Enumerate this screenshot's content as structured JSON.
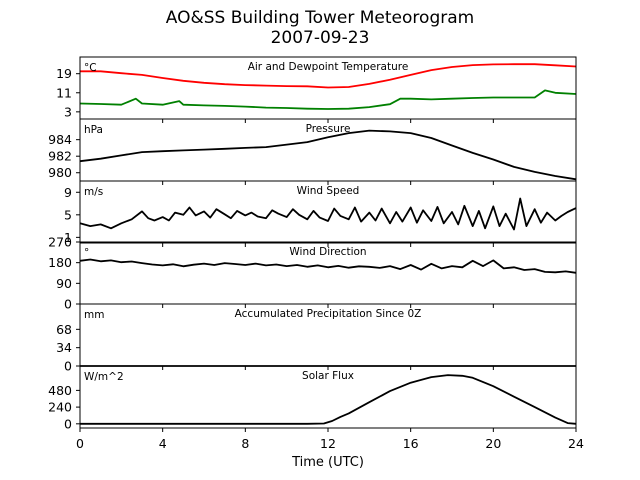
{
  "figure": {
    "title": "AO&SS Building Tower Meteorogram",
    "subtitle": "2007-09-23",
    "xlabel": "Time (UTC)"
  },
  "colors": {
    "temperature": "#ff0000",
    "dewpoint": "#008000",
    "default": "#000000"
  },
  "chart_data": [
    {
      "type": "line",
      "title": "Air and Dewpoint Temperature",
      "unit": "°C",
      "xlim": [
        0,
        24
      ],
      "xticks": [
        0,
        4,
        8,
        12,
        16,
        20,
        24
      ],
      "ylim": [
        0,
        26
      ],
      "yticks": [
        3,
        11,
        19
      ],
      "series": [
        {
          "color": "temperature",
          "x": [
            0,
            1,
            2,
            3,
            4,
            5,
            6,
            7,
            8,
            9,
            10,
            11,
            12,
            13,
            14,
            15,
            16,
            17,
            18,
            19,
            20,
            21,
            22,
            23,
            24
          ],
          "y": [
            20.0,
            20.0,
            19.2,
            18.5,
            17.2,
            16.0,
            15.2,
            14.6,
            14.2,
            14.0,
            13.8,
            13.7,
            13.2,
            13.4,
            14.7,
            16.5,
            18.5,
            20.5,
            21.8,
            22.6,
            22.9,
            23.0,
            23.0,
            22.5,
            22.0
          ]
        },
        {
          "color": "dewpoint",
          "x": [
            0,
            1,
            2,
            2.7,
            3,
            4,
            4.8,
            5,
            6,
            7,
            8,
            9,
            10,
            11,
            12,
            13,
            14,
            15,
            15.5,
            16,
            17,
            18,
            19,
            20,
            21,
            22,
            22.5,
            23,
            24
          ],
          "y": [
            6.5,
            6.3,
            6.0,
            8.5,
            6.5,
            6.0,
            7.5,
            6.0,
            5.7,
            5.5,
            5.2,
            4.8,
            4.6,
            4.3,
            4.2,
            4.3,
            5.0,
            6.2,
            8.5,
            8.5,
            8.2,
            8.5,
            8.8,
            9.0,
            9.0,
            9.0,
            12.0,
            11.0,
            10.5
          ]
        }
      ]
    },
    {
      "type": "line",
      "title": "Pressure",
      "unit": "hPa",
      "xlim": [
        0,
        24
      ],
      "ylim": [
        979.0,
        986.5
      ],
      "yticks": [
        980,
        982,
        984
      ],
      "series": [
        {
          "color": "default",
          "x": [
            0,
            1,
            2,
            3,
            4,
            5,
            6,
            7,
            8,
            9,
            10,
            11,
            12,
            13,
            14,
            15,
            16,
            17,
            18,
            19,
            20,
            21,
            22,
            23,
            24
          ],
          "y": [
            981.4,
            981.7,
            982.1,
            982.5,
            982.6,
            982.7,
            982.8,
            982.9,
            983.0,
            983.1,
            983.4,
            983.7,
            984.3,
            984.8,
            985.1,
            985.0,
            984.8,
            984.2,
            983.3,
            982.4,
            981.6,
            980.7,
            980.1,
            979.6,
            979.2
          ]
        }
      ]
    },
    {
      "type": "line",
      "title": "Wind Speed",
      "unit": "m/s",
      "xlim": [
        0,
        24
      ],
      "ylim": [
        0,
        11
      ],
      "yticks": [
        1,
        5,
        9
      ],
      "series": [
        {
          "color": "default",
          "x": [
            0,
            0.5,
            1,
            1.5,
            2,
            2.5,
            3,
            3.3,
            3.6,
            4,
            4.3,
            4.6,
            5,
            5.3,
            5.6,
            6,
            6.3,
            6.6,
            7,
            7.3,
            7.6,
            8,
            8.3,
            8.6,
            9,
            9.3,
            9.6,
            10,
            10.3,
            10.6,
            11,
            11.3,
            11.6,
            12,
            12.3,
            12.6,
            13,
            13.3,
            13.6,
            14,
            14.3,
            14.6,
            15,
            15.3,
            15.6,
            16,
            16.3,
            16.6,
            17,
            17.3,
            17.6,
            18,
            18.3,
            18.6,
            19,
            19.3,
            19.6,
            20,
            20.3,
            20.6,
            21,
            21.3,
            21.6,
            22,
            22.3,
            22.6,
            23,
            23.3,
            23.6,
            24
          ],
          "y": [
            3.5,
            3.0,
            3.3,
            2.6,
            3.5,
            4.2,
            5.6,
            4.4,
            4.0,
            4.6,
            4.0,
            5.4,
            5.0,
            6.3,
            4.9,
            5.6,
            4.5,
            6.0,
            5.1,
            4.4,
            5.7,
            4.9,
            5.4,
            4.7,
            4.4,
            5.8,
            5.2,
            4.6,
            6.0,
            5.0,
            4.2,
            5.7,
            4.5,
            3.9,
            6.1,
            4.8,
            4.2,
            6.3,
            3.8,
            5.4,
            4.0,
            6.1,
            3.5,
            5.5,
            3.8,
            6.3,
            3.6,
            5.8,
            3.9,
            6.4,
            3.5,
            5.5,
            3.3,
            6.6,
            3.0,
            5.7,
            2.6,
            6.5,
            3.0,
            5.2,
            2.4,
            7.9,
            3.0,
            6.0,
            3.6,
            5.4,
            4.0,
            4.8,
            5.5,
            6.2
          ]
        }
      ]
    },
    {
      "type": "line",
      "title": "Wind Direction",
      "unit": "°",
      "xlim": [
        0,
        24
      ],
      "ylim": [
        0,
        270
      ],
      "yticks": [
        0,
        90,
        180,
        270
      ],
      "series": [
        {
          "color": "default",
          "x": [
            0,
            0.5,
            1,
            1.5,
            2,
            2.5,
            3,
            3.5,
            4,
            4.5,
            5,
            5.5,
            6,
            6.5,
            7,
            7.5,
            8,
            8.5,
            9,
            9.5,
            10,
            10.5,
            11,
            11.5,
            12,
            12.5,
            13,
            13.5,
            14,
            14.5,
            15,
            15.5,
            16,
            16.5,
            17,
            17.5,
            18,
            18.5,
            19,
            19.5,
            20,
            20.5,
            21,
            21.5,
            22,
            22.5,
            23,
            23.5,
            24
          ],
          "y": [
            188,
            194,
            186,
            190,
            182,
            185,
            178,
            172,
            168,
            173,
            164,
            171,
            176,
            170,
            178,
            174,
            170,
            176,
            168,
            172,
            165,
            170,
            162,
            168,
            160,
            166,
            158,
            164,
            162,
            157,
            165,
            152,
            170,
            150,
            175,
            155,
            165,
            160,
            188,
            165,
            190,
            155,
            160,
            148,
            152,
            140,
            138,
            142,
            136
          ]
        }
      ]
    },
    {
      "type": "line",
      "title": "Accumulated Precipitation Since 0Z",
      "unit": "mm",
      "xlim": [
        0,
        24
      ],
      "ylim": [
        0,
        115
      ],
      "yticks": [
        0,
        34,
        68
      ],
      "series": [
        {
          "color": "default",
          "x": [
            0,
            24
          ],
          "y": [
            0,
            0
          ]
        }
      ]
    },
    {
      "type": "line",
      "title": "Solar Flux",
      "unit": "W/m^2",
      "xlim": [
        0,
        24
      ],
      "ylim": [
        -60,
        830
      ],
      "yticks": [
        0,
        240,
        480
      ],
      "series": [
        {
          "color": "default",
          "x": [
            0,
            2,
            4,
            6,
            8,
            10,
            11,
            11.8,
            12.2,
            12.6,
            13,
            14,
            15,
            16,
            17,
            17.8,
            18.5,
            19,
            20,
            21,
            22,
            23,
            23.6,
            24
          ],
          "y": [
            0,
            0,
            0,
            0,
            0,
            0,
            0,
            5,
            40,
            100,
            150,
            310,
            470,
            590,
            670,
            700,
            690,
            660,
            540,
            390,
            240,
            90,
            10,
            0
          ]
        }
      ]
    }
  ]
}
